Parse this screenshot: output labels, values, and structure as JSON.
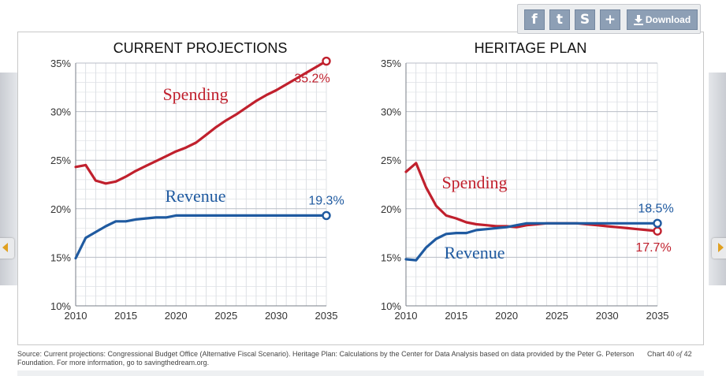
{
  "toolbar": {
    "facebook_glyph": "f",
    "twitter_glyph": "t",
    "stumble_glyph": "S",
    "share_glyph": "+",
    "download_label": "Download"
  },
  "chart_data": [
    {
      "type": "line",
      "title": "CURRENT PROJECTIONS",
      "x_ticks": [
        "2010",
        "2015",
        "2020",
        "2025",
        "2030",
        "2035"
      ],
      "y_ticks": [
        "10%",
        "15%",
        "20%",
        "25%",
        "30%",
        "35%"
      ],
      "xlim": [
        2010,
        2035
      ],
      "ylim": [
        10,
        35
      ],
      "grid": true,
      "series": [
        {
          "name": "Spending",
          "color": "#c0202d",
          "end_label": "35.2%",
          "x": [
            2010,
            2011,
            2012,
            2013,
            2014,
            2015,
            2016,
            2017,
            2018,
            2019,
            2020,
            2021,
            2022,
            2023,
            2024,
            2025,
            2026,
            2027,
            2028,
            2029,
            2030,
            2031,
            2032,
            2033,
            2034,
            2035
          ],
          "values": [
            24.3,
            24.5,
            22.9,
            22.6,
            22.8,
            23.3,
            23.9,
            24.4,
            24.9,
            25.4,
            25.9,
            26.3,
            26.8,
            27.6,
            28.4,
            29.1,
            29.7,
            30.4,
            31.1,
            31.7,
            32.2,
            32.8,
            33.4,
            34.0,
            34.6,
            35.2
          ]
        },
        {
          "name": "Revenue",
          "color": "#1f5aa0",
          "end_label": "19.3%",
          "x": [
            2010,
            2011,
            2012,
            2013,
            2014,
            2015,
            2016,
            2017,
            2018,
            2019,
            2020,
            2021,
            2022,
            2023,
            2024,
            2025,
            2026,
            2027,
            2028,
            2029,
            2030,
            2031,
            2032,
            2033,
            2034,
            2035
          ],
          "values": [
            14.9,
            17.0,
            17.6,
            18.2,
            18.7,
            18.7,
            18.9,
            19.0,
            19.1,
            19.1,
            19.3,
            19.3,
            19.3,
            19.3,
            19.3,
            19.3,
            19.3,
            19.3,
            19.3,
            19.3,
            19.3,
            19.3,
            19.3,
            19.3,
            19.3,
            19.3
          ]
        }
      ]
    },
    {
      "type": "line",
      "title": "HERITAGE PLAN",
      "x_ticks": [
        "2010",
        "2015",
        "2020",
        "2025",
        "2030",
        "2035"
      ],
      "y_ticks": [
        "10%",
        "15%",
        "20%",
        "25%",
        "30%",
        "35%"
      ],
      "xlim": [
        2010,
        2035
      ],
      "ylim": [
        10,
        35
      ],
      "grid": true,
      "series": [
        {
          "name": "Spending",
          "color": "#c0202d",
          "end_label": "17.7%",
          "x": [
            2010,
            2011,
            2012,
            2013,
            2014,
            2015,
            2016,
            2017,
            2018,
            2019,
            2020,
            2021,
            2022,
            2023,
            2024,
            2025,
            2026,
            2027,
            2028,
            2029,
            2030,
            2031,
            2032,
            2033,
            2034,
            2035
          ],
          "values": [
            23.8,
            24.7,
            22.2,
            20.3,
            19.3,
            19.0,
            18.6,
            18.4,
            18.3,
            18.2,
            18.2,
            18.1,
            18.3,
            18.4,
            18.5,
            18.5,
            18.5,
            18.5,
            18.4,
            18.3,
            18.2,
            18.1,
            18.0,
            17.9,
            17.8,
            17.7
          ]
        },
        {
          "name": "Revenue",
          "color": "#1f5aa0",
          "end_label": "18.5%",
          "x": [
            2010,
            2011,
            2012,
            2013,
            2014,
            2015,
            2016,
            2017,
            2018,
            2019,
            2020,
            2021,
            2022,
            2023,
            2024,
            2025,
            2026,
            2027,
            2028,
            2029,
            2030,
            2031,
            2032,
            2033,
            2034,
            2035
          ],
          "values": [
            14.8,
            14.7,
            16.0,
            16.9,
            17.4,
            17.5,
            17.5,
            17.8,
            17.9,
            18.0,
            18.1,
            18.3,
            18.5,
            18.5,
            18.5,
            18.5,
            18.5,
            18.5,
            18.5,
            18.5,
            18.5,
            18.5,
            18.5,
            18.5,
            18.5,
            18.5
          ]
        }
      ]
    }
  ],
  "footer": {
    "source": "Source: Current projections: Congressional Budget Office (Alternative Fiscal Scenario). Heritage Plan: Calculations by the Center for Data Analysis based on data provided by the Peter G. Peterson Foundation. For more information, go to savingthedream.org.",
    "chart_prefix": "Chart 40",
    "chart_of": "of",
    "chart_total": "42"
  }
}
